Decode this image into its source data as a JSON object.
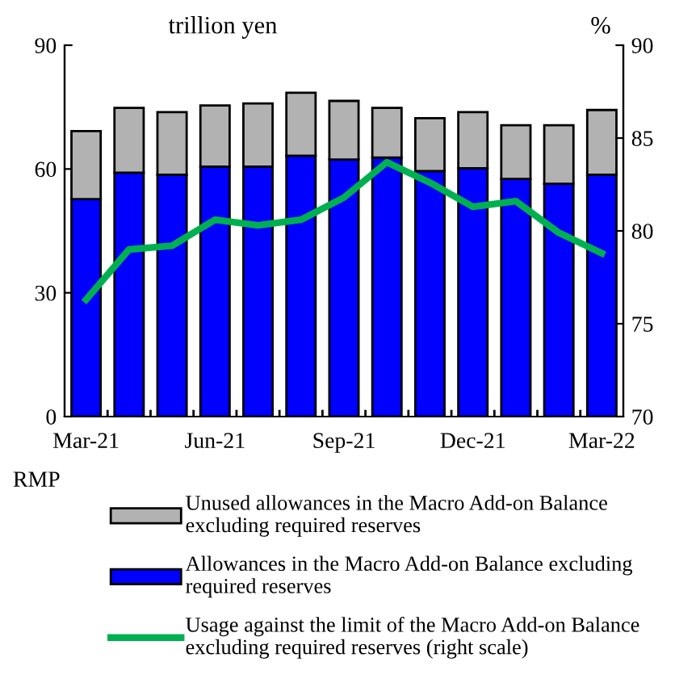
{
  "chart_data": {
    "type": "bar",
    "stacked": true,
    "categories": [
      "Mar-21",
      null,
      null,
      "Jun-21",
      null,
      null,
      "Sep-21",
      null,
      null,
      "Dec-21",
      null,
      null,
      "Mar-22"
    ],
    "series": [
      {
        "name": "Allowances in the Macro Add-on Balance excluding\nrequired reserves",
        "color": "#0000ff",
        "values": [
          52.7,
          59.1,
          58.6,
          60.6,
          60.6,
          63.2,
          62.3,
          62.8,
          59.5,
          60.2,
          57.6,
          56.4,
          58.6
        ]
      },
      {
        "name": "Unused allowances in the Macro Add-on Balance\nexcluding required reserves",
        "color": "#b2b2b2",
        "values": [
          16.5,
          15.7,
          15.2,
          14.8,
          15.3,
          15.3,
          14.2,
          12.0,
          12.8,
          13.6,
          13.0,
          14.2,
          15.7
        ]
      },
      {
        "name": "Usage against the limit of the Macro Add-on Balance\nexcluding required reserves (right scale)",
        "color": "#00b050",
        "type": "line",
        "axis": "y2",
        "values": [
          76.3,
          79.0,
          79.2,
          80.6,
          80.3,
          80.6,
          81.8,
          83.7,
          82.6,
          81.3,
          81.6,
          79.9,
          78.8
        ]
      }
    ],
    "ylabel": "trillion yen",
    "y2label": "%",
    "ylim": [
      0,
      90
    ],
    "yticks": [
      0,
      30,
      60,
      90
    ],
    "y2lim": [
      70,
      90
    ],
    "y2ticks": [
      70,
      75,
      80,
      85,
      90
    ],
    "annotations": [
      "RMP"
    ],
    "legend": "bottom",
    "grid": false
  }
}
